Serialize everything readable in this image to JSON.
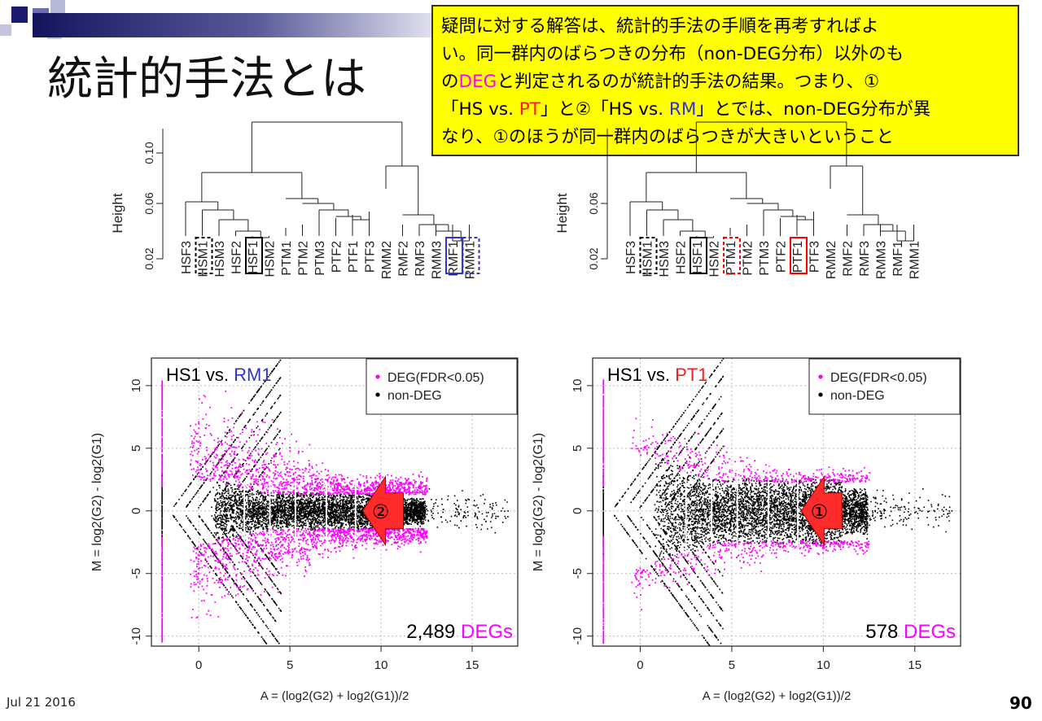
{
  "slide": {
    "title": "統計的手法とは",
    "date": "Jul 21 2016",
    "page_number": "90"
  },
  "callout": {
    "lines": [
      [
        "疑問に対する解答は、統計的手法の手順を再考すればよ"
      ],
      [
        "い。同一群内のばらつきの分布（non-DEG分布）以外のも"
      ],
      [
        "の",
        "DEG",
        "と判定されるのが統計的手法の結果。つまり、①"
      ],
      [
        "「HS vs. ",
        "PT",
        "」と②「HS vs. ",
        "RM",
        "」とでは、non-DEG分布が異"
      ],
      [
        "なり、①のほうが同一群内のばらつきが大きいということ"
      ]
    ],
    "colors": {
      "highlight_magenta": "#ff00ff",
      "highlight_red": "#ff1a1a",
      "highlight_blue": "#3333cc",
      "background": "#ffff00"
    }
  },
  "chart_data": [
    {
      "type": "dendrogram",
      "ylabel": "Height",
      "yticks": [
        "0.02",
        "0.06",
        "0.10"
      ],
      "leaves": [
        "HSF3",
        "HSM1",
        "HSM3",
        "HSF2",
        "HSF1",
        "HSM2",
        "PTM1",
        "PTM2",
        "PTM3",
        "PTF2",
        "PTF1",
        "PTF3",
        "RMM2",
        "RMF2",
        "RMF3",
        "RMM3",
        "RMF1",
        "RMM1"
      ],
      "boxed_leaves": [
        {
          "leaf": "HSM1",
          "style": "dashed",
          "color": "#000000"
        },
        {
          "leaf": "HSF1",
          "style": "solid",
          "color": "#000000"
        },
        {
          "leaf": "RMF1",
          "style": "solid",
          "color": "#3333cc"
        },
        {
          "leaf": "RMM1",
          "style": "dashed",
          "color": "#3333cc"
        }
      ]
    },
    {
      "type": "dendrogram",
      "ylabel": "Height",
      "yticks": [
        "0.02",
        "0.06"
      ],
      "leaves": [
        "HSF3",
        "HSM1",
        "HSM3",
        "HSF2",
        "HSF1",
        "HSM2",
        "PTM1",
        "PTM2",
        "PTM3",
        "PTF2",
        "PTF1",
        "PTF3",
        "RMM2",
        "RMF2",
        "RMF3",
        "RMM3",
        "RMF1",
        "RMM1"
      ],
      "boxed_leaves": [
        {
          "leaf": "HSM1",
          "style": "dashed",
          "color": "#000000"
        },
        {
          "leaf": "HSF1",
          "style": "solid",
          "color": "#000000"
        },
        {
          "leaf": "PTM1",
          "style": "dashed",
          "color": "#ff0000"
        },
        {
          "leaf": "PTF1",
          "style": "solid",
          "color": "#ff0000"
        }
      ]
    },
    {
      "type": "scatter",
      "title_prefix": "HS1 vs. ",
      "title_highlight": "RM1",
      "title_highlight_color": "#3333cc",
      "xlabel": "A = (log2(G2) + log2(G1))/2",
      "ylabel": "M = log2(G2) - log2(G1)",
      "xlim": [
        -2.6,
        17.5
      ],
      "ylim": [
        -10.8,
        12.2
      ],
      "xticks": [
        0,
        5,
        10,
        15
      ],
      "yticks": [
        -10,
        -5,
        0,
        5,
        10
      ],
      "grid": true,
      "legend": {
        "position": "top-right",
        "entries": [
          {
            "label": "DEG(FDR<0.05)",
            "color": "#ff00ff"
          },
          {
            "label": "non-DEG",
            "color": "#000000"
          }
        ]
      },
      "deg_count_number": "2,489",
      "deg_count_word": "DEGs",
      "non_deg_core_half_width": 1.5,
      "deg_max_abs_m": 9,
      "marker": "②",
      "marker_a": 10.6,
      "arrows_a": [
        2.5,
        3.9,
        5.3,
        7,
        8.6
      ],
      "arrow_half_height": 2.3,
      "series": [
        {
          "name": "DEG(FDR<0.05)",
          "color": "#ff00ff"
        },
        {
          "name": "non-DEG",
          "color": "#000000"
        }
      ]
    },
    {
      "type": "scatter",
      "title_prefix": "HS1 vs. ",
      "title_highlight": "PT1",
      "title_highlight_color": "#ff1a1a",
      "xlabel": "A = (log2(G2) + log2(G1))/2",
      "ylabel": "M = log2(G2) - log2(G1)",
      "xlim": [
        -2.6,
        17.5
      ],
      "ylim": [
        -10.8,
        12.2
      ],
      "xticks": [
        0,
        5,
        10,
        15
      ],
      "yticks": [
        -10,
        -5,
        0,
        5,
        10
      ],
      "grid": true,
      "legend": {
        "position": "top-right",
        "entries": [
          {
            "label": "DEG(FDR<0.05)",
            "color": "#ff00ff"
          },
          {
            "label": "non-DEG",
            "color": "#000000"
          }
        ]
      },
      "deg_count_number": "578",
      "deg_count_word": "DEGs",
      "non_deg_core_half_width": 2.6,
      "deg_max_abs_m": 7.5,
      "marker": "①",
      "marker_a": 10.4,
      "arrows_a": [
        2.5,
        3.9,
        5.3,
        7,
        8.6
      ],
      "arrow_half_height": 3.5,
      "series": [
        {
          "name": "DEG(FDR<0.05)",
          "color": "#ff00ff"
        },
        {
          "name": "non-DEG",
          "color": "#000000"
        }
      ]
    }
  ]
}
